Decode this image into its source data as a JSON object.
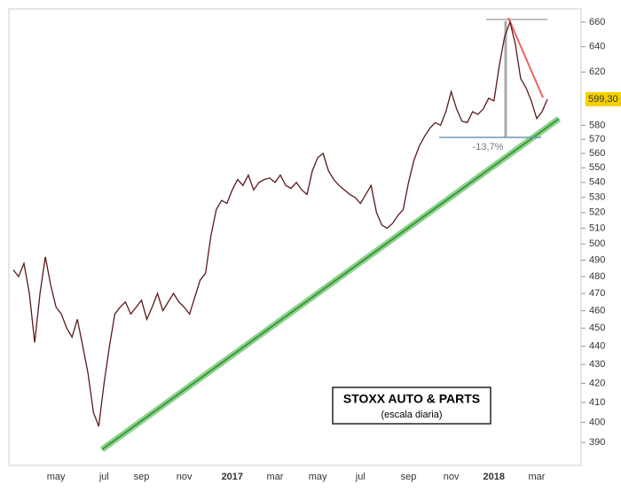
{
  "chart_data": {
    "type": "line",
    "categories": [
      null,
      null,
      null,
      null,
      null,
      null,
      null,
      null,
      "may",
      null,
      null,
      null,
      null,
      null,
      null,
      null,
      null,
      "jul",
      null,
      null,
      null,
      null,
      null,
      null,
      "sep",
      null,
      null,
      null,
      null,
      null,
      null,
      null,
      "nov",
      null,
      null,
      null,
      null,
      null,
      null,
      null,
      null,
      "2017",
      null,
      null,
      null,
      null,
      null,
      null,
      null,
      "mar",
      null,
      null,
      null,
      null,
      null,
      null,
      null,
      "may",
      null,
      null,
      null,
      null,
      null,
      null,
      null,
      "jul",
      null,
      null,
      null,
      null,
      null,
      null,
      null,
      null,
      "sep",
      null,
      null,
      null,
      null,
      null,
      null,
      null,
      "nov",
      null,
      null,
      null,
      null,
      null,
      null,
      null,
      "2018",
      null,
      null,
      null,
      null,
      null,
      null,
      null,
      "mar",
      null,
      null
    ],
    "values": [
      484,
      480,
      488,
      470,
      442,
      470,
      492,
      475,
      462,
      458,
      450,
      445,
      455,
      440,
      425,
      405,
      398,
      420,
      440,
      458,
      462,
      465,
      458,
      462,
      466,
      455,
      462,
      470,
      460,
      465,
      470,
      465,
      462,
      458,
      468,
      478,
      482,
      505,
      522,
      528,
      526,
      535,
      542,
      538,
      545,
      535,
      540,
      542,
      543,
      540,
      545,
      538,
      536,
      540,
      535,
      532,
      548,
      557,
      560,
      548,
      542,
      538,
      535,
      532,
      530,
      526,
      532,
      538,
      520,
      512,
      510,
      513,
      518,
      522,
      540,
      555,
      565,
      572,
      578,
      582,
      580,
      590,
      605,
      592,
      583,
      582,
      590,
      588,
      592,
      600,
      598,
      625,
      648,
      660,
      642,
      615,
      608,
      598,
      585,
      590,
      599.3
    ],
    "color": "#5a1a1a",
    "log_scale": true,
    "ylim": [
      379,
      671
    ],
    "yticks": [
      390,
      400,
      410,
      420,
      430,
      440,
      450,
      460,
      470,
      480,
      490,
      500,
      510,
      520,
      530,
      540,
      550,
      560,
      570,
      580,
      620,
      640,
      660
    ],
    "last_value": {
      "value": 599.3,
      "label": "599,30"
    },
    "annotations": [
      "-13,7%",
      "STOXX AUTO & PARTS",
      "(escala diaria)"
    ]
  }
}
